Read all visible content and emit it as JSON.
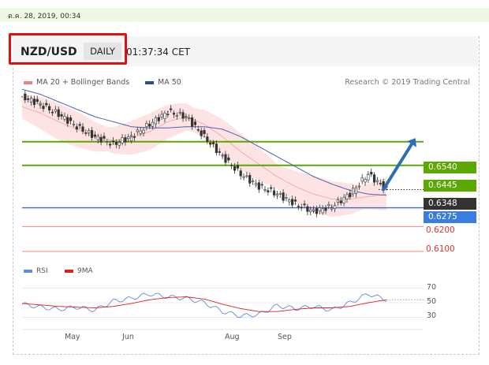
{
  "datestamp": "ต.ค. 28, 2019, 00:34",
  "header": {
    "pair": "NZD/USD",
    "timeframe": "DAILY",
    "clock": "01:37:34 CET"
  },
  "legend": {
    "bb_label": "MA 20 + Bollinger Bands",
    "ma50_label": "MA 50",
    "credit": "Research © 2019 Trading Central"
  },
  "colors": {
    "up_green": "#5aa800",
    "current_dark": "#333333",
    "blue": "#3366cc",
    "red": "#e03030",
    "bb_fill": "#fde6e6",
    "arrow": "#2c6fb3"
  },
  "chart_data": [
    {
      "type": "line",
      "title": "",
      "x_labels": [
        "May",
        "Jun",
        "Aug",
        "Sep"
      ],
      "ylim": [
        0.6065,
        0.6735
      ],
      "levels": [
        {
          "label": "0.6540",
          "value": 0.654,
          "color": "#5aa800",
          "kind": "resistance"
        },
        {
          "label": "0.6445",
          "value": 0.6445,
          "color": "#5aa800",
          "kind": "resistance"
        },
        {
          "label": "0.6348",
          "value": 0.6348,
          "color": "#333333",
          "kind": "current"
        },
        {
          "label": "0.6275",
          "value": 0.6275,
          "color": "#3366cc",
          "kind": "pivot"
        },
        {
          "label": "0.6200",
          "value": 0.62,
          "color": "#e03030",
          "kind": "support"
        },
        {
          "label": "0.6100",
          "value": 0.61,
          "color": "#e03030",
          "kind": "support"
        }
      ],
      "series": [
        {
          "name": "MA 20 + Bollinger Bands",
          "values": [
            0.668,
            0.6655,
            0.662,
            0.659,
            0.656,
            0.6545,
            0.6555,
            0.658,
            0.662,
            0.664,
            0.661,
            0.656,
            0.65,
            0.645,
            0.64,
            0.636,
            0.633,
            0.631,
            0.631,
            0.632,
            0.633
          ]
        },
        {
          "name": "MA 50",
          "values": [
            0.675,
            0.673,
            0.67,
            0.667,
            0.664,
            0.662,
            0.66,
            0.6595,
            0.6595,
            0.66,
            0.66,
            0.659,
            0.656,
            0.652,
            0.648,
            0.644,
            0.64,
            0.637,
            0.6345,
            0.633,
            0.6325
          ]
        },
        {
          "name": "",
          "values": [
            0.672,
            0.669,
            0.665,
            0.66,
            0.656,
            0.653,
            0.656,
            0.661,
            0.666,
            0.664,
            0.656,
            0.648,
            0.641,
            0.636,
            0.633,
            0.629,
            0.626,
            0.628,
            0.633,
            0.641,
            0.6348
          ]
        }
      ]
    },
    {
      "type": "line",
      "title": "",
      "ylim": [
        20,
        80
      ],
      "y_ticks": [
        70,
        50,
        30
      ],
      "series": [
        {
          "name": "RSI",
          "values": [
            48,
            44,
            41,
            44,
            40,
            52,
            56,
            62,
            58,
            56,
            50,
            38,
            32,
            34,
            46,
            42,
            45,
            40,
            50,
            62,
            54
          ]
        },
        {
          "name": "9MA",
          "values": [
            49,
            47,
            45,
            44,
            43,
            45,
            49,
            54,
            57,
            58,
            55,
            48,
            42,
            38,
            38,
            41,
            43,
            43,
            45,
            50,
            54
          ]
        }
      ]
    }
  ]
}
